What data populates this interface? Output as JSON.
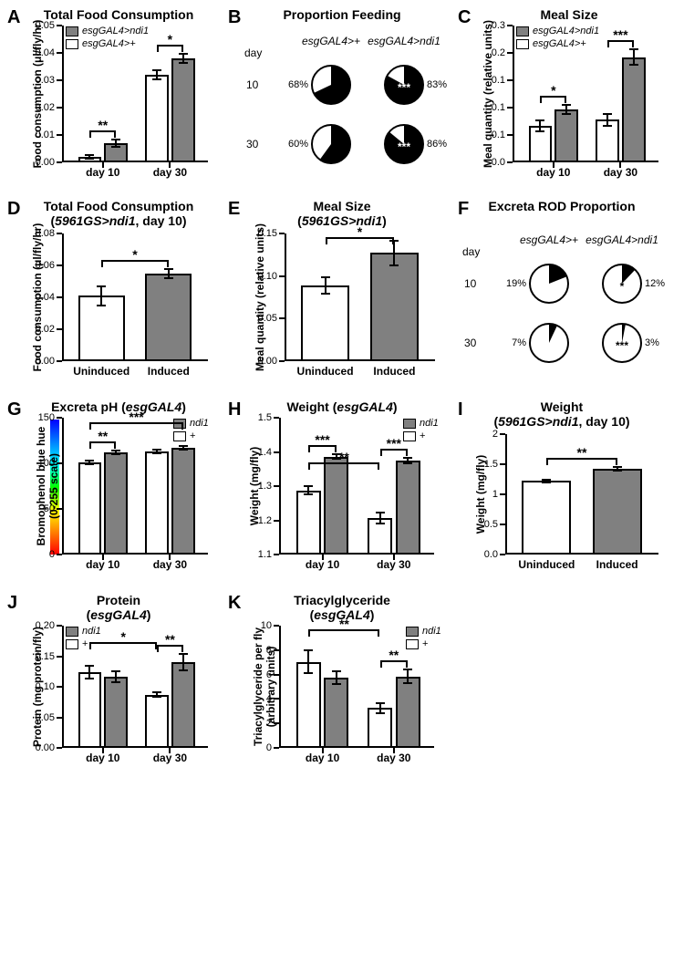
{
  "colors": {
    "gray": "#808080",
    "white": "#ffffff",
    "black": "#000000"
  },
  "font": {
    "title_size": 14,
    "axis_size": 12,
    "tick_size": 11
  },
  "panels": {
    "A": {
      "letter": "A",
      "title": "Total Food Consumption",
      "ylabel": "Food consumption (μl/fly/hr)",
      "xgroups": [
        "day 10",
        "day 30"
      ],
      "legend": [
        {
          "label": "esgGAL4>ndi1",
          "fill": "gray",
          "italic": true
        },
        {
          "label": "esgGAL4>+",
          "fill": "white",
          "italic": true
        }
      ],
      "ylim": [
        0,
        0.05
      ],
      "yticks": [
        0.0,
        0.01,
        0.02,
        0.03,
        0.04,
        0.05
      ],
      "bars": [
        {
          "group": 0,
          "fill": "white",
          "value": 0.002,
          "err": 0.0006
        },
        {
          "group": 0,
          "fill": "gray",
          "value": 0.007,
          "err": 0.0012
        },
        {
          "group": 1,
          "fill": "white",
          "value": 0.032,
          "err": 0.0018
        },
        {
          "group": 1,
          "fill": "gray",
          "value": 0.038,
          "err": 0.0018
        }
      ],
      "brackets": [
        {
          "from": 0,
          "to": 1,
          "label": "**"
        },
        {
          "from": 2,
          "to": 3,
          "label": "*"
        }
      ]
    },
    "B": {
      "letter": "B",
      "title": "Proportion Feeding",
      "col_heads": [
        "esgGAL4>+",
        "esgGAL4>ndi1"
      ],
      "row_heads": [
        "10",
        "30"
      ],
      "row_head_title": "day",
      "pies": [
        [
          {
            "pct": 68,
            "label": "68%",
            "sig": ""
          },
          {
            "pct": 83,
            "label": "83%",
            "sig": "***"
          }
        ],
        [
          {
            "pct": 60,
            "label": "60%",
            "sig": ""
          },
          {
            "pct": 86,
            "label": "86%",
            "sig": "***"
          }
        ]
      ],
      "pie_colors": {
        "fill": "#000000",
        "empty": "#ffffff",
        "stroke": "#000000"
      },
      "radius": 22
    },
    "C": {
      "letter": "C",
      "title": "Meal Size",
      "ylabel": "Meal quantity (relative units)",
      "xgroups": [
        "day 10",
        "day 30"
      ],
      "legend": [
        {
          "label": "esgGAL4>ndi1",
          "fill": "gray",
          "italic": true
        },
        {
          "label": "esgGAL4>+",
          "fill": "white",
          "italic": true
        }
      ],
      "ylim": [
        0,
        0.25
      ],
      "yticks": [
        0.0,
        0.05,
        0.1,
        0.15,
        0.2,
        0.25
      ],
      "bars": [
        {
          "group": 0,
          "fill": "white",
          "value": 0.066,
          "err": 0.01
        },
        {
          "group": 0,
          "fill": "gray",
          "value": 0.097,
          "err": 0.008
        },
        {
          "group": 1,
          "fill": "white",
          "value": 0.078,
          "err": 0.011
        },
        {
          "group": 1,
          "fill": "gray",
          "value": 0.192,
          "err": 0.014
        }
      ],
      "brackets": [
        {
          "from": 0,
          "to": 1,
          "label": "*"
        },
        {
          "from": 2,
          "to": 3,
          "label": "***"
        }
      ]
    },
    "D": {
      "letter": "D",
      "title_l1": "Total Food Consumption",
      "title_l2": "(5961GS>ndi1, day 10)",
      "ylabel": "Food consumption (μl/fly/hr)",
      "xgroups": [
        "Uninduced",
        "Induced"
      ],
      "ylim": [
        0,
        0.08
      ],
      "yticks": [
        0.0,
        0.02,
        0.04,
        0.06,
        0.08
      ],
      "bars": [
        {
          "fill": "white",
          "value": 0.041,
          "err": 0.006
        },
        {
          "fill": "gray",
          "value": 0.055,
          "err": 0.003
        }
      ],
      "brackets": [
        {
          "from": 0,
          "to": 1,
          "label": "*"
        }
      ]
    },
    "E": {
      "letter": "E",
      "title_l1": "Meal Size",
      "title_l2": "(5961GS>ndi1)",
      "ylabel": "Meal quantity (relative units)",
      "xgroups": [
        "Uninduced",
        "Induced"
      ],
      "ylim": [
        0,
        0.15
      ],
      "yticks": [
        0.0,
        0.05,
        0.1,
        0.15
      ],
      "bars": [
        {
          "fill": "white",
          "value": 0.089,
          "err": 0.01
        },
        {
          "fill": "gray",
          "value": 0.127,
          "err": 0.014
        }
      ],
      "brackets": [
        {
          "from": 0,
          "to": 1,
          "label": "*"
        }
      ]
    },
    "F": {
      "letter": "F",
      "title": "Excreta ROD Proportion",
      "col_heads": [
        "esgGAL4>+",
        "esgGAL4>ndi1"
      ],
      "row_heads": [
        "10",
        "30"
      ],
      "row_head_title": "day",
      "pies": [
        [
          {
            "pct": 19,
            "label": "19%",
            "sig": ""
          },
          {
            "pct": 12,
            "label": "12%",
            "sig": "*"
          }
        ],
        [
          {
            "pct": 7,
            "label": "7%",
            "sig": ""
          },
          {
            "pct": 3,
            "label": "3%",
            "sig": "***"
          }
        ]
      ],
      "pie_colors": {
        "fill": "#000000",
        "empty": "#ffffff",
        "stroke": "#000000"
      },
      "radius": 22
    },
    "G": {
      "letter": "G",
      "title": "Excreta pH (esgGAL4)",
      "ylabel_l1": "Bromophenol blue hue",
      "ylabel_l2": "(0-255 scale)",
      "xgroups": [
        "day 10",
        "day 30"
      ],
      "legend": [
        {
          "label": "ndi1",
          "fill": "gray",
          "italic": true
        },
        {
          "label": "+",
          "fill": "white",
          "italic": false
        }
      ],
      "ylim": [
        0,
        150
      ],
      "yticks": [
        0,
        50,
        100,
        150
      ],
      "bars": [
        {
          "group": 0,
          "fill": "white",
          "value": 101,
          "err": 2
        },
        {
          "group": 0,
          "fill": "gray",
          "value": 112,
          "err": 2
        },
        {
          "group": 1,
          "fill": "white",
          "value": 113,
          "err": 2
        },
        {
          "group": 1,
          "fill": "gray",
          "value": 117,
          "err": 2
        }
      ],
      "brackets": [
        {
          "from": 0,
          "to": 1,
          "label": "**"
        },
        {
          "from": 0,
          "to": 3,
          "label": "***",
          "high": true
        }
      ],
      "hue_gradient": [
        "#ff0000",
        "#ffff00",
        "#00ff00",
        "#00ffff",
        "#0000ff",
        "#ff00ff"
      ]
    },
    "H": {
      "letter": "H",
      "title": "Weight (esgGAL4)",
      "ylabel": "Weight (mg/fly)",
      "xgroups": [
        "day 10",
        "day 30"
      ],
      "legend": [
        {
          "label": "ndi1",
          "fill": "gray",
          "italic": true
        },
        {
          "label": "+",
          "fill": "white",
          "italic": false
        }
      ],
      "ylim": [
        1.1,
        1.5
      ],
      "yticks": [
        1.1,
        1.2,
        1.3,
        1.4,
        1.5
      ],
      "bars": [
        {
          "group": 0,
          "fill": "white",
          "value": 1.288,
          "err": 0.012
        },
        {
          "group": 0,
          "fill": "gray",
          "value": 1.386,
          "err": 0.007
        },
        {
          "group": 1,
          "fill": "white",
          "value": 1.208,
          "err": 0.016
        },
        {
          "group": 1,
          "fill": "gray",
          "value": 1.376,
          "err": 0.008
        }
      ],
      "brackets": [
        {
          "from": 0,
          "to": 1,
          "label": "***"
        },
        {
          "from": 2,
          "to": 3,
          "label": "***"
        },
        {
          "from": 0,
          "to": 2,
          "label": "**",
          "high": true
        }
      ]
    },
    "I": {
      "letter": "I",
      "title_l1": "Weight",
      "title_l2": "(5961GS>ndi1, day 10)",
      "ylabel": "Weight (mg/fly)",
      "xgroups": [
        "Uninduced",
        "Induced"
      ],
      "ylim": [
        0,
        2.0
      ],
      "yticks": [
        0.0,
        0.5,
        1.0,
        1.5,
        2.0
      ],
      "bars": [
        {
          "fill": "white",
          "value": 1.22,
          "err": 0.02
        },
        {
          "fill": "gray",
          "value": 1.42,
          "err": 0.03
        }
      ],
      "brackets": [
        {
          "from": 0,
          "to": 1,
          "label": "**"
        }
      ]
    },
    "J": {
      "letter": "J",
      "title_l1": "Protein",
      "title_l2": "(esgGAL4)",
      "ylabel": "Protein (mg protein/fly)",
      "xgroups": [
        "day 10",
        "day 30"
      ],
      "legend": [
        {
          "label": "ndi1",
          "fill": "gray",
          "italic": true
        },
        {
          "label": "+",
          "fill": "white",
          "italic": false
        }
      ],
      "ylim": [
        0,
        0.2
      ],
      "yticks": [
        0.0,
        0.05,
        0.1,
        0.15,
        0.2
      ],
      "bars": [
        {
          "group": 0,
          "fill": "white",
          "value": 0.124,
          "err": 0.01
        },
        {
          "group": 0,
          "fill": "gray",
          "value": 0.116,
          "err": 0.009
        },
        {
          "group": 1,
          "fill": "white",
          "value": 0.087,
          "err": 0.004
        },
        {
          "group": 1,
          "fill": "gray",
          "value": 0.14,
          "err": 0.013
        }
      ],
      "brackets": [
        {
          "from": 0,
          "to": 2,
          "label": "*",
          "high": true
        },
        {
          "from": 2,
          "to": 3,
          "label": "**"
        }
      ]
    },
    "K": {
      "letter": "K",
      "title_l1": "Triacylglyceride",
      "title_l2": "(esgGAL4)",
      "ylabel_l1": "Triacylglyceride per fly",
      "ylabel_l2": "(arbitrary units)",
      "xgroups": [
        "day 10",
        "day 30"
      ],
      "legend": [
        {
          "label": "ndi1",
          "fill": "gray",
          "italic": true
        },
        {
          "label": "+",
          "fill": "white",
          "italic": false
        }
      ],
      "ylim": [
        0,
        10
      ],
      "yticks": [
        0,
        2,
        4,
        6,
        8,
        10
      ],
      "bars": [
        {
          "group": 0,
          "fill": "white",
          "value": 7.05,
          "err": 0.95
        },
        {
          "group": 0,
          "fill": "gray",
          "value": 5.75,
          "err": 0.55
        },
        {
          "group": 1,
          "fill": "white",
          "value": 3.25,
          "err": 0.4
        },
        {
          "group": 1,
          "fill": "gray",
          "value": 5.85,
          "err": 0.55
        }
      ],
      "brackets": [
        {
          "from": 0,
          "to": 2,
          "label": "**",
          "high": true
        },
        {
          "from": 2,
          "to": 3,
          "label": "**"
        }
      ]
    }
  }
}
